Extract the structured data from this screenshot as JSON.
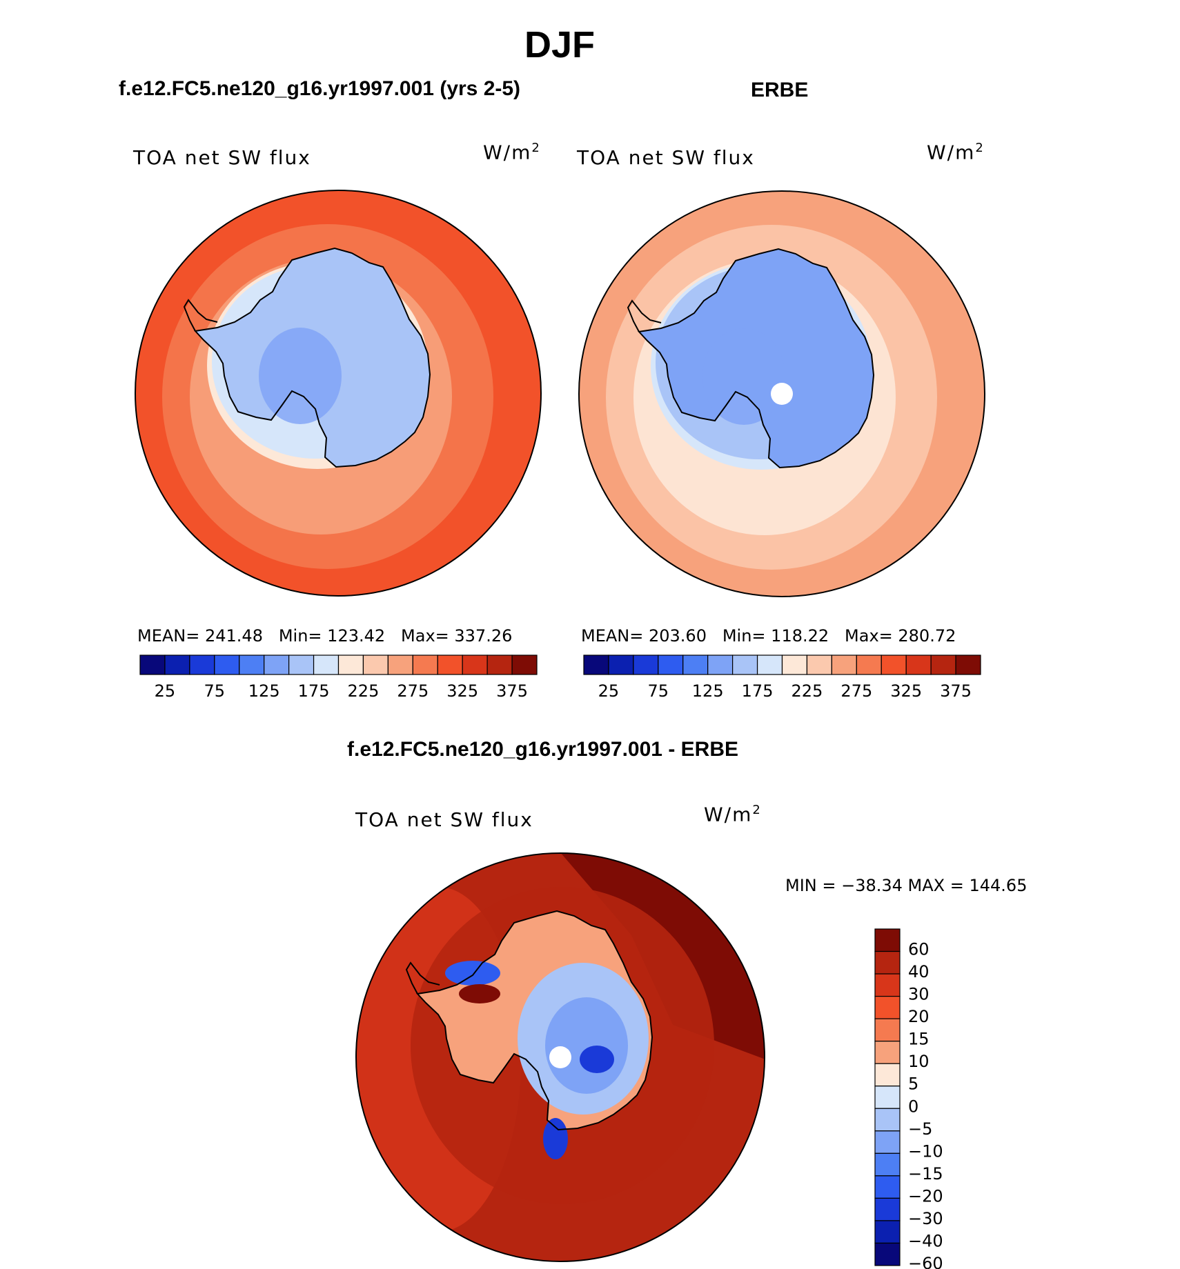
{
  "season_title": "DJF",
  "panels": [
    {
      "case_title": "f.e12.FC5.ne120_g16.yr1997.001 (yrs 2-5)",
      "variable": "TOA net SW flux",
      "units_base": "W/m",
      "units_exp": "2",
      "stats": "MEAN= 241.48   Min= 123.42   Max= 337.26",
      "ocean_level": 300,
      "ice_level": 150
    },
    {
      "case_title": "ERBE",
      "variable": "TOA net SW flux",
      "units_base": "W/m",
      "units_exp": "2",
      "stats": "MEAN= 203.60   Min= 118.22   Max= 280.72",
      "ocean_level": 250,
      "ice_level": 140
    }
  ],
  "abs_colorbar": {
    "colors": [
      "#08087a",
      "#0b20b0",
      "#1a3ad8",
      "#2e5cf0",
      "#4d7ff4",
      "#7ea3f6",
      "#a9c4f7",
      "#d6e6fa",
      "#fde8d8",
      "#fbc9ae",
      "#f7a27c",
      "#f57a50",
      "#f2522a",
      "#d8361a",
      "#b52510",
      "#7e0c05"
    ],
    "ticks": [
      "25",
      "75",
      "125",
      "175",
      "225",
      "275",
      "325",
      "375"
    ]
  },
  "diff_panel": {
    "case_title": "f.e12.FC5.ne120_g16.yr1997.001 - ERBE",
    "variable": "TOA net SW flux",
    "units_base": "W/m",
    "units_exp": "2",
    "stats": "MIN = −38.34 MAX = 144.65",
    "colorbar": {
      "colors": [
        "#7e0c05",
        "#b52510",
        "#d8361a",
        "#f2522a",
        "#f57a50",
        "#f7a27c",
        "#fde8d8",
        "#d6e6fa",
        "#a9c4f7",
        "#7ea3f6",
        "#4d7ff4",
        "#2e5cf0",
        "#1a3ad8",
        "#0b20b0",
        "#08087a"
      ],
      "ticks": [
        "60",
        "40",
        "30",
        "20",
        "15",
        "10",
        "5",
        "0",
        "−5",
        "−10",
        "−15",
        "−20",
        "−30",
        "−40",
        "−60"
      ]
    }
  }
}
